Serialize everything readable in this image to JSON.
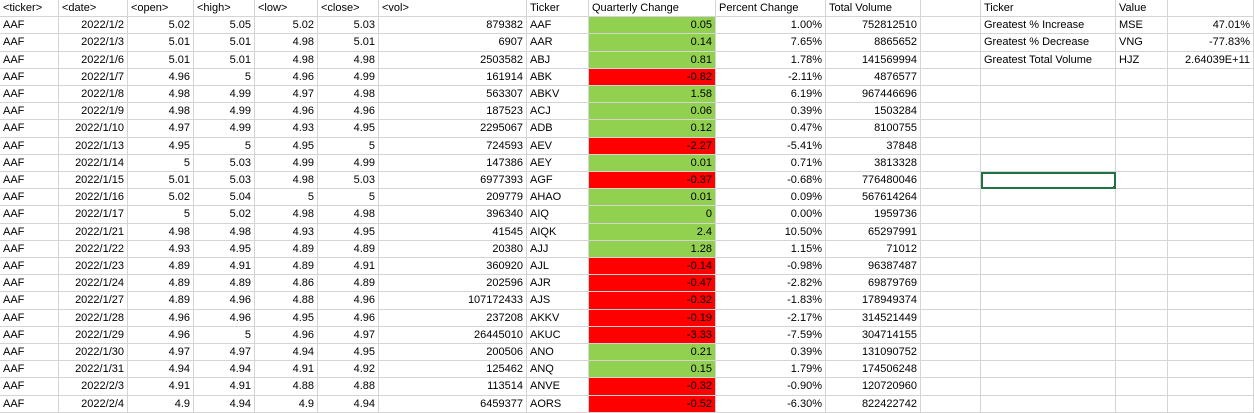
{
  "columns": {
    "stock": [
      "<ticker>",
      "<date>",
      "<open>",
      "<high>",
      "<low>",
      "<close>",
      "<vol>"
    ],
    "summary": [
      "Ticker",
      "Quarterly Change",
      "Percent Change",
      "Total Volume"
    ],
    "greatest": [
      "Ticker",
      "Value"
    ]
  },
  "stock_rows": [
    [
      "AAF",
      "2022/1/2",
      "5.02",
      "5.05",
      "5.02",
      "5.03",
      "879382"
    ],
    [
      "AAF",
      "2022/1/3",
      "5.01",
      "5.01",
      "4.98",
      "5.01",
      "6907"
    ],
    [
      "AAF",
      "2022/1/6",
      "5.01",
      "5.01",
      "4.98",
      "4.98",
      "2503582"
    ],
    [
      "AAF",
      "2022/1/7",
      "4.96",
      "5",
      "4.96",
      "4.99",
      "161914"
    ],
    [
      "AAF",
      "2022/1/8",
      "4.98",
      "4.99",
      "4.97",
      "4.98",
      "563307"
    ],
    [
      "AAF",
      "2022/1/9",
      "4.98",
      "4.99",
      "4.96",
      "4.96",
      "187523"
    ],
    [
      "AAF",
      "2022/1/10",
      "4.97",
      "4.99",
      "4.93",
      "4.95",
      "2295067"
    ],
    [
      "AAF",
      "2022/1/13",
      "4.95",
      "5",
      "4.95",
      "5",
      "724593"
    ],
    [
      "AAF",
      "2022/1/14",
      "5",
      "5.03",
      "4.99",
      "4.99",
      "147386"
    ],
    [
      "AAF",
      "2022/1/15",
      "5.01",
      "5.03",
      "4.98",
      "5.03",
      "6977393"
    ],
    [
      "AAF",
      "2022/1/16",
      "5.02",
      "5.04",
      "5",
      "5",
      "209779"
    ],
    [
      "AAF",
      "2022/1/17",
      "5",
      "5.02",
      "4.98",
      "4.98",
      "396340"
    ],
    [
      "AAF",
      "2022/1/21",
      "4.98",
      "4.98",
      "4.93",
      "4.95",
      "41545"
    ],
    [
      "AAF",
      "2022/1/22",
      "4.93",
      "4.95",
      "4.89",
      "4.89",
      "20380"
    ],
    [
      "AAF",
      "2022/1/23",
      "4.89",
      "4.91",
      "4.89",
      "4.91",
      "360920"
    ],
    [
      "AAF",
      "2022/1/24",
      "4.89",
      "4.89",
      "4.86",
      "4.89",
      "202596"
    ],
    [
      "AAF",
      "2022/1/27",
      "4.89",
      "4.96",
      "4.88",
      "4.96",
      "107172433"
    ],
    [
      "AAF",
      "2022/1/28",
      "4.96",
      "4.96",
      "4.95",
      "4.96",
      "237208"
    ],
    [
      "AAF",
      "2022/1/29",
      "4.96",
      "5",
      "4.96",
      "4.97",
      "26445010"
    ],
    [
      "AAF",
      "2022/1/30",
      "4.97",
      "4.97",
      "4.94",
      "4.95",
      "200506"
    ],
    [
      "AAF",
      "2022/1/31",
      "4.94",
      "4.94",
      "4.91",
      "4.92",
      "125462"
    ],
    [
      "AAF",
      "2022/2/3",
      "4.91",
      "4.91",
      "4.88",
      "4.88",
      "113514"
    ],
    [
      "AAF",
      "2022/2/4",
      "4.9",
      "4.94",
      "4.9",
      "4.94",
      "6459377"
    ]
  ],
  "summary_rows": [
    [
      "AAF",
      "0.05",
      "1.00%",
      "752812510",
      "green"
    ],
    [
      "AAR",
      "0.14",
      "7.65%",
      "8865652",
      "green"
    ],
    [
      "ABJ",
      "0.81",
      "1.78%",
      "141569994",
      "green"
    ],
    [
      "ABK",
      "-0.82",
      "-2.11%",
      "4876577",
      "red"
    ],
    [
      "ABKV",
      "1.58",
      "6.19%",
      "967446696",
      "green"
    ],
    [
      "ACJ",
      "0.06",
      "0.39%",
      "1503284",
      "green"
    ],
    [
      "ADB",
      "0.12",
      "0.47%",
      "8100755",
      "green"
    ],
    [
      "AEV",
      "-2.27",
      "-5.41%",
      "37848",
      "red"
    ],
    [
      "AEY",
      "0.01",
      "0.71%",
      "3813328",
      "green"
    ],
    [
      "AGF",
      "-0.37",
      "-0.68%",
      "776480046",
      "red"
    ],
    [
      "AHAO",
      "0.01",
      "0.09%",
      "567614264",
      "green"
    ],
    [
      "AIQ",
      "0",
      "0.00%",
      "1959736",
      "green"
    ],
    [
      "AIQK",
      "2.4",
      "10.50%",
      "65297991",
      "green"
    ],
    [
      "AJJ",
      "1.28",
      "1.15%",
      "71012",
      "green"
    ],
    [
      "AJL",
      "-0.14",
      "-0.98%",
      "96387487",
      "red"
    ],
    [
      "AJR",
      "-0.47",
      "-2.82%",
      "69879769",
      "red"
    ],
    [
      "AJS",
      "-0.32",
      "-1.83%",
      "178949374",
      "red"
    ],
    [
      "AKKV",
      "-0.19",
      "-2.17%",
      "314521449",
      "red"
    ],
    [
      "AKUC",
      "-3.33",
      "-7.59%",
      "304714155",
      "red"
    ],
    [
      "ANO",
      "0.21",
      "0.39%",
      "131090752",
      "green"
    ],
    [
      "ANQ",
      "0.15",
      "1.79%",
      "174506248",
      "green"
    ],
    [
      "ANVE",
      "-0.32",
      "-0.90%",
      "120720960",
      "red"
    ],
    [
      "AORS",
      "-0.52",
      "-6.30%",
      "822422742",
      "red"
    ]
  ],
  "greatest_rows": [
    [
      "Greatest % Increase",
      "MSE",
      "47.01%"
    ],
    [
      "Greatest % Decrease",
      "VNG",
      "-77.83%"
    ],
    [
      "Greatest Total Volume",
      "HJZ",
      "2.64039E+11"
    ]
  ],
  "colors": {
    "positive": "#92d050",
    "negative": "#ff0000",
    "selection": "#217346",
    "gridline": "#d4d4d4"
  }
}
